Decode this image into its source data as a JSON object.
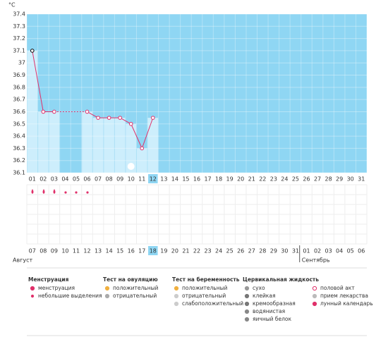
{
  "unit": "°C",
  "chart_data": {
    "type": "line",
    "categories": [
      "01",
      "02",
      "03",
      "04",
      "05",
      "06",
      "07",
      "08",
      "09",
      "10",
      "11",
      "12",
      "13",
      "14",
      "15",
      "16",
      "17",
      "18",
      "19",
      "20",
      "21",
      "22",
      "23",
      "24",
      "25",
      "26",
      "27",
      "28",
      "29",
      "30",
      "31"
    ],
    "values": [
      37.1,
      36.6,
      36.6,
      null,
      null,
      36.6,
      36.55,
      36.55,
      36.55,
      36.5,
      36.3,
      36.55,
      null,
      null,
      null,
      null,
      null,
      null,
      null,
      null,
      null,
      null,
      null,
      null,
      null,
      null,
      null,
      null,
      null,
      null,
      null
    ],
    "color": "#e0306a",
    "ylim": [
      36.1,
      37.4
    ],
    "yticks": [
      36.1,
      36.2,
      36.3,
      36.4,
      36.5,
      36.6,
      36.7,
      36.8,
      36.9,
      37,
      37.1,
      37.2,
      37.3,
      37.4
    ],
    "grid": true,
    "selected_index": 11
  },
  "dates": [
    {
      "label": "07",
      "weekend": true
    },
    {
      "label": "08",
      "weekend": false
    },
    {
      "label": "09",
      "weekend": false
    },
    {
      "label": "10",
      "weekend": false
    },
    {
      "label": "11",
      "weekend": false
    },
    {
      "label": "12",
      "weekend": false
    },
    {
      "label": "13",
      "weekend": true
    },
    {
      "label": "14",
      "weekend": true
    },
    {
      "label": "15",
      "weekend": false
    },
    {
      "label": "16",
      "weekend": false
    },
    {
      "label": "17",
      "weekend": false
    },
    {
      "label": "18",
      "weekend": false
    },
    {
      "label": "19",
      "weekend": false
    },
    {
      "label": "20",
      "weekend": true
    },
    {
      "label": "21",
      "weekend": true
    },
    {
      "label": "22",
      "weekend": false
    },
    {
      "label": "23",
      "weekend": false
    },
    {
      "label": "24",
      "weekend": false
    },
    {
      "label": "25",
      "weekend": false
    },
    {
      "label": "26",
      "weekend": false
    },
    {
      "label": "27",
      "weekend": true
    },
    {
      "label": "28",
      "weekend": true
    },
    {
      "label": "29",
      "weekend": false
    },
    {
      "label": "30",
      "weekend": false
    },
    {
      "label": "31",
      "weekend": false
    },
    {
      "label": "01",
      "weekend": false
    },
    {
      "label": "02",
      "weekend": false
    },
    {
      "label": "03",
      "weekend": true
    },
    {
      "label": "04",
      "weekend": true
    },
    {
      "label": "05",
      "weekend": false
    },
    {
      "label": "06",
      "weekend": false
    }
  ],
  "months": [
    "Август",
    "Сентябрь"
  ],
  "legend": [
    {
      "title": "Менструация",
      "items": [
        "менструация",
        "небольшие выделения"
      ]
    },
    {
      "title": "Тест на овуляцию",
      "items": [
        "положительный",
        "отрицательный"
      ]
    },
    {
      "title": "Тест на беременность",
      "items": [
        "положительный",
        "отрицательный",
        "слабоположительный"
      ]
    },
    {
      "title": "Цервикальная жидкость",
      "items": [
        "сухо",
        "клейкая",
        "кремообразная",
        "водянистая",
        "яичный белок"
      ]
    },
    {
      "items": [
        "половой акт",
        "прием лекарства",
        "лунный календарь"
      ]
    }
  ]
}
